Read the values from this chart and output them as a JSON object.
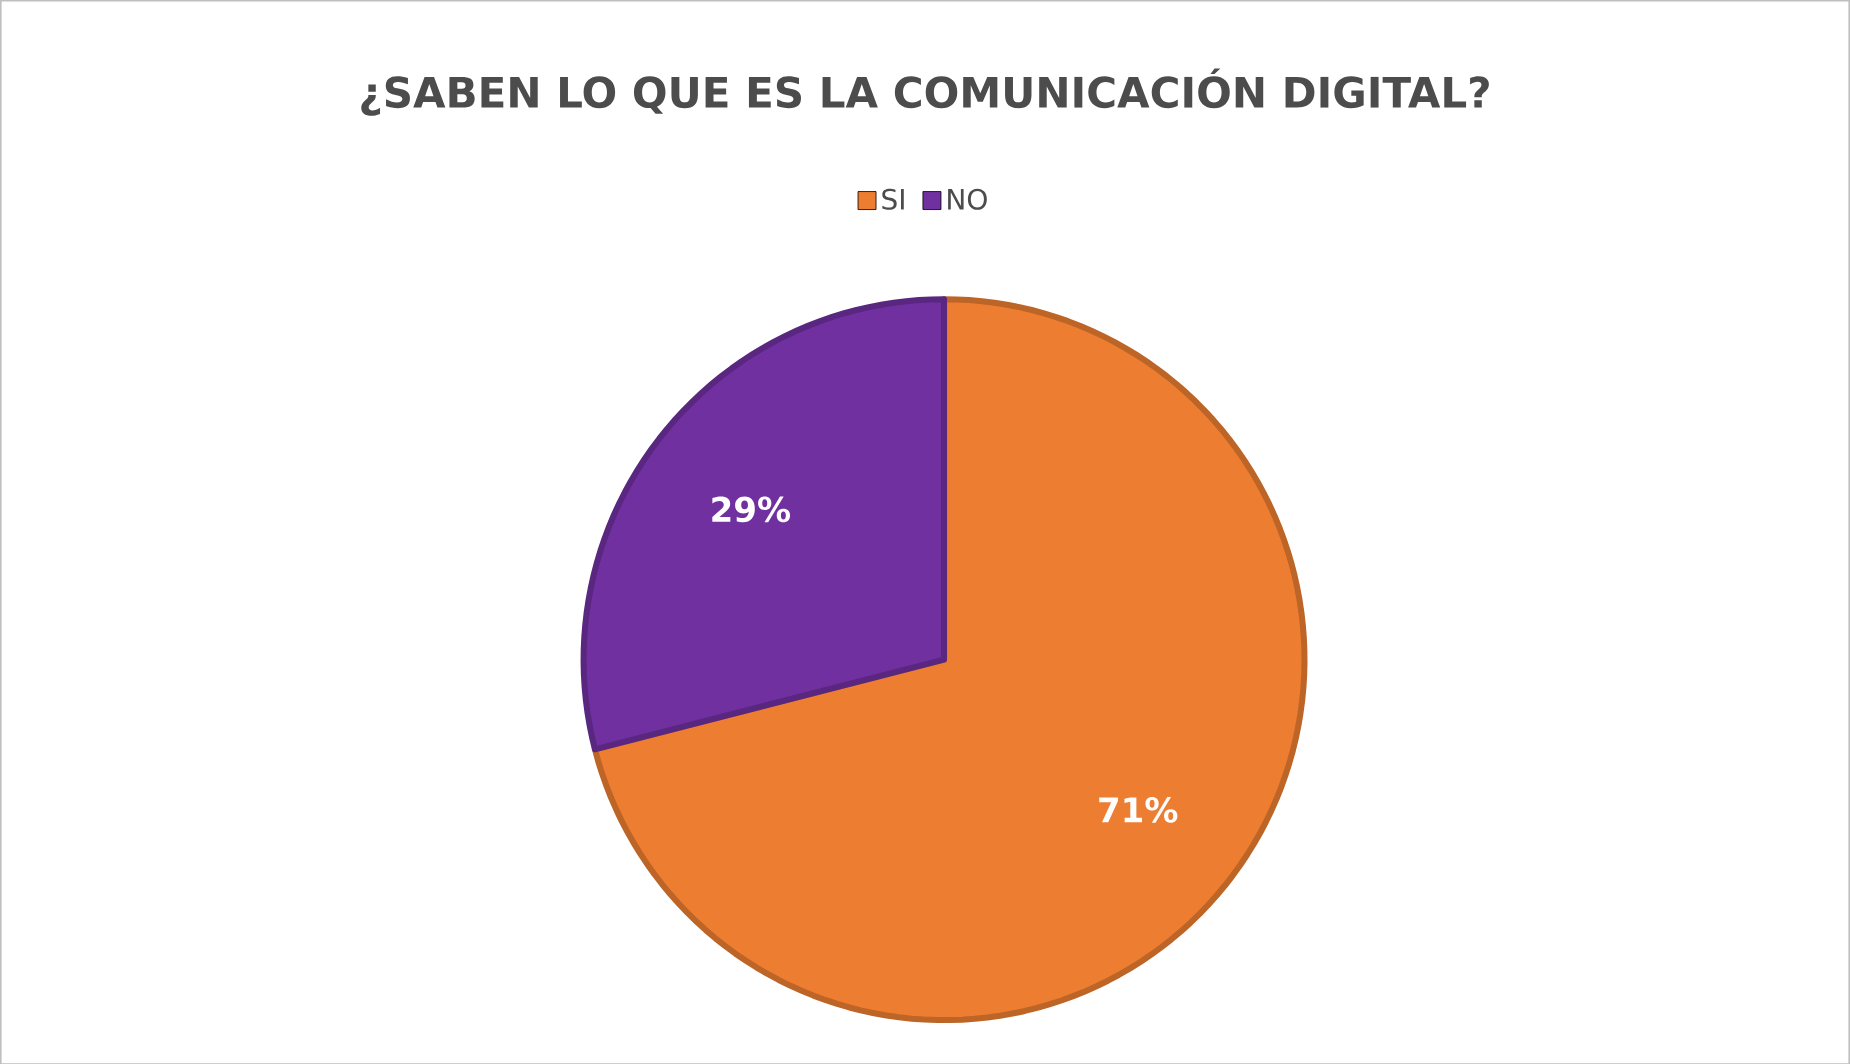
{
  "chart_data": {
    "type": "pie",
    "title": "¿SABEN LO QUE ES LA COMUNICACIÓN DIGITAL?",
    "categories": [
      "SI",
      "NO"
    ],
    "values": [
      71,
      29
    ],
    "colors": [
      "#ed7d31",
      "#7030a0"
    ],
    "value_labels": [
      "71%",
      "29%"
    ],
    "legend": "top"
  }
}
